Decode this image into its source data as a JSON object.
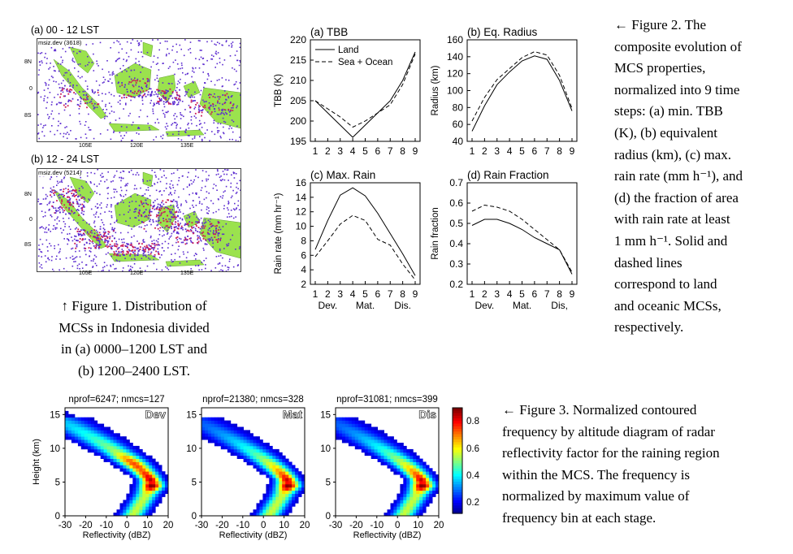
{
  "figure1": {
    "panel_a": {
      "label": "(a) 00 - 12 LST",
      "tag": "msiz.dev",
      "count": "(3618)"
    },
    "panel_b": {
      "label": "(b) 12 - 24 LST",
      "tag": "msiz.dev",
      "count": "(5214)"
    },
    "lat_ticks": [
      "8N",
      "0",
      "8S"
    ],
    "lon_ticks": [
      "105E",
      "120E",
      "135E"
    ],
    "caption": [
      "↑ Figure 1. Distribution of",
      "MCSs in Indonesia divided",
      "in (a) 0000–1200 LST and",
      "(b) 1200–2400 LST."
    ],
    "colors": {
      "land": "#9be24e",
      "dots": "#5b2bd0",
      "dense": "#cc1a55"
    }
  },
  "figure2": {
    "caption": [
      "← Figure 2. The",
      "composite evolution of",
      "MCS properties,",
      "normalized into 9 time",
      "steps: (a) min. TBB",
      "(K), (b) equivalent",
      "radius (km), (c) max.",
      "rain rate (mm h⁻¹), and",
      "(d) the fraction of area",
      "with rain rate at least",
      "1 mm h⁻¹. Solid and",
      "dashed lines",
      "correspond to land",
      "and oceanic MCSs,",
      "respectively."
    ],
    "legend": [
      "Land",
      "Sea + Ocean"
    ],
    "stage_labels_c": [
      "Dev.",
      "Mat.",
      "Dis."
    ],
    "stage_labels_d": [
      "Dev.",
      "Mat.",
      "Dis,"
    ]
  },
  "chart_data": [
    {
      "type": "line",
      "title": "(a) TBB",
      "ylabel": "TBB (K)",
      "x": [
        1,
        2,
        3,
        4,
        5,
        6,
        7,
        8,
        9
      ],
      "ylim": [
        195,
        220
      ],
      "yticks": [
        195,
        200,
        205,
        210,
        215,
        220
      ],
      "series": [
        {
          "name": "Land",
          "values": [
            205,
            202,
            199,
            196,
            199,
            202,
            205,
            210,
            217
          ]
        },
        {
          "name": "Sea + Ocean",
          "values": [
            205,
            203,
            201,
            198.5,
            200,
            202,
            204,
            209,
            216.5
          ]
        }
      ]
    },
    {
      "type": "line",
      "title": "(b) Eq. Radius",
      "ylabel": "Radius (km)",
      "x": [
        1,
        2,
        3,
        4,
        5,
        6,
        7,
        8,
        9
      ],
      "ylim": [
        40,
        160
      ],
      "yticks": [
        40,
        60,
        80,
        100,
        120,
        140,
        160
      ],
      "series": [
        {
          "name": "Land",
          "values": [
            52,
            82,
            107,
            122,
            135,
            141,
            137,
            112,
            76
          ]
        },
        {
          "name": "Sea + Ocean",
          "values": [
            64,
            92,
            113,
            126,
            139,
            146,
            142,
            118,
            79
          ]
        }
      ]
    },
    {
      "type": "line",
      "title": "(c) Max. Rain",
      "ylabel": "Rain rate (mm hr⁻¹)",
      "x": [
        1,
        2,
        3,
        4,
        5,
        6,
        7,
        8,
        9
      ],
      "ylim": [
        2,
        16
      ],
      "yticks": [
        2,
        4,
        6,
        8,
        10,
        12,
        14,
        16
      ],
      "series": [
        {
          "name": "Land",
          "values": [
            6.8,
            10.8,
            14.3,
            15.3,
            14.2,
            11.8,
            9.0,
            6.2,
            3.2
          ]
        },
        {
          "name": "Sea + Ocean",
          "values": [
            5.8,
            8.0,
            10.3,
            11.5,
            10.8,
            8.2,
            7.4,
            4.8,
            2.6
          ]
        }
      ]
    },
    {
      "type": "line",
      "title": "(d) Rain Fraction",
      "ylabel": "Rain fraction",
      "x": [
        1,
        2,
        3,
        4,
        5,
        6,
        7,
        8,
        9
      ],
      "ylim": [
        0.2,
        0.7
      ],
      "yticks": [
        0.2,
        0.3,
        0.4,
        0.5,
        0.6,
        0.7
      ],
      "series": [
        {
          "name": "Land",
          "values": [
            0.49,
            0.52,
            0.52,
            0.5,
            0.47,
            0.43,
            0.4,
            0.37,
            0.25
          ]
        },
        {
          "name": "Sea + Ocean",
          "values": [
            0.56,
            0.59,
            0.58,
            0.56,
            0.52,
            0.47,
            0.42,
            0.37,
            0.26
          ]
        }
      ]
    },
    {
      "type": "heatmap",
      "title": "nprof=6247; nmcs=127",
      "stage": "Dev",
      "xlabel": "Reflectivity (dBZ)",
      "ylabel": "Height (km)",
      "xlim": [
        -30,
        20
      ],
      "ylim": [
        0,
        16
      ],
      "xticks": [
        -30,
        -20,
        -10,
        0,
        10,
        20
      ],
      "yticks": [
        0,
        5,
        10,
        15
      ]
    },
    {
      "type": "heatmap",
      "title": "nprof=21380; nmcs=328",
      "stage": "Mat",
      "xlabel": "Reflectivity (dBZ)",
      "ylabel": "",
      "xlim": [
        -30,
        20
      ],
      "ylim": [
        0,
        16
      ],
      "xticks": [
        -30,
        -20,
        -10,
        0,
        10,
        20
      ],
      "yticks": [
        0,
        5,
        10,
        15
      ]
    },
    {
      "type": "heatmap",
      "title": "nprof=31081; nmcs=399",
      "stage": "Dis",
      "xlabel": "Reflectivity (dBZ)",
      "ylabel": "",
      "xlim": [
        -30,
        20
      ],
      "ylim": [
        0,
        16
      ],
      "xticks": [
        -30,
        -20,
        -10,
        0,
        10,
        20
      ],
      "yticks": [
        0,
        5,
        10,
        15
      ]
    }
  ],
  "figure3": {
    "colorbar_ticks": [
      "0.8",
      "0.6",
      "0.4",
      "0.2"
    ],
    "caption": [
      "← Figure 3. Normalized contoured",
      "frequency by altitude diagram of radar",
      "reflectivity factor for the raining region",
      "within the MCS. The frequency is",
      "normalized by maximum value of",
      "frequency bin at each stage."
    ]
  }
}
